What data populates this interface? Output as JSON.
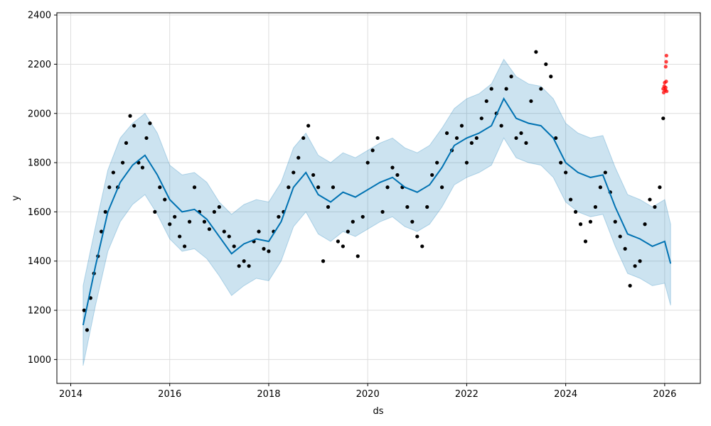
{
  "chart_data": {
    "type": "line",
    "xlabel": "ds",
    "ylabel": "y",
    "x_axis_kind": "date (decimal year)",
    "xlim": [
      2013.72,
      2026.72
    ],
    "ylim": [
      903,
      2409
    ],
    "x_ticks": [
      2014,
      2016,
      2018,
      2020,
      2022,
      2024,
      2026
    ],
    "x_tick_labels": [
      "2014",
      "2016",
      "2018",
      "2020",
      "2022",
      "2024",
      "2026"
    ],
    "y_ticks": [
      1000,
      1200,
      1400,
      1600,
      1800,
      2000,
      2200,
      2400
    ],
    "y_tick_labels": [
      "1000",
      "1200",
      "1400",
      "1600",
      "1800",
      "2000",
      "2200",
      "2400"
    ],
    "grid": true,
    "colors": {
      "forecast_line": "#0072B2",
      "interval_fill": "#0072B2",
      "observed_points": "#000000",
      "new_points": "#FF0000",
      "grid": "#dddddd"
    },
    "series": [
      {
        "kind": "forecast",
        "x": [
          2014.25,
          2014.5,
          2014.75,
          2015.0,
          2015.25,
          2015.5,
          2015.75,
          2016.0,
          2016.25,
          2016.5,
          2016.75,
          2017.0,
          2017.25,
          2017.5,
          2017.75,
          2018.0,
          2018.25,
          2018.5,
          2018.75,
          2019.0,
          2019.25,
          2019.5,
          2019.75,
          2020.0,
          2020.25,
          2020.5,
          2020.75,
          2021.0,
          2021.25,
          2021.5,
          2021.75,
          2022.0,
          2022.25,
          2022.5,
          2022.75,
          2023.0,
          2023.25,
          2023.5,
          2023.75,
          2024.0,
          2024.25,
          2024.5,
          2024.75,
          2025.0,
          2025.25,
          2025.5,
          2025.75,
          2026.0,
          2026.12
        ],
        "y": [
          1140,
          1380,
          1600,
          1720,
          1790,
          1830,
          1750,
          1650,
          1600,
          1610,
          1570,
          1500,
          1430,
          1470,
          1490,
          1480,
          1560,
          1700,
          1760,
          1670,
          1640,
          1680,
          1660,
          1690,
          1720,
          1740,
          1700,
          1680,
          1710,
          1780,
          1870,
          1900,
          1920,
          1950,
          2060,
          1980,
          1960,
          1950,
          1900,
          1800,
          1760,
          1740,
          1750,
          1620,
          1510,
          1490,
          1460,
          1480,
          1390
        ]
      },
      {
        "kind": "interval_upper",
        "x": [
          2014.25,
          2014.5,
          2014.75,
          2015.0,
          2015.25,
          2015.5,
          2015.75,
          2016.0,
          2016.25,
          2016.5,
          2016.75,
          2017.0,
          2017.25,
          2017.5,
          2017.75,
          2018.0,
          2018.25,
          2018.5,
          2018.75,
          2019.0,
          2019.25,
          2019.5,
          2019.75,
          2020.0,
          2020.25,
          2020.5,
          2020.75,
          2021.0,
          2021.25,
          2021.5,
          2021.75,
          2022.0,
          2022.25,
          2022.5,
          2022.75,
          2023.0,
          2023.25,
          2023.5,
          2023.75,
          2024.0,
          2024.25,
          2024.5,
          2024.75,
          2025.0,
          2025.25,
          2025.5,
          2025.75,
          2026.0,
          2026.12
        ],
        "y": [
          1300,
          1540,
          1770,
          1900,
          1960,
          2000,
          1920,
          1790,
          1750,
          1760,
          1720,
          1640,
          1590,
          1630,
          1650,
          1640,
          1720,
          1860,
          1920,
          1830,
          1800,
          1840,
          1820,
          1850,
          1880,
          1900,
          1860,
          1840,
          1870,
          1940,
          2020,
          2060,
          2080,
          2120,
          2220,
          2150,
          2120,
          2110,
          2060,
          1960,
          1920,
          1900,
          1910,
          1780,
          1670,
          1650,
          1620,
          1650,
          1550
        ]
      },
      {
        "kind": "interval_lower",
        "x": [
          2014.25,
          2014.5,
          2014.75,
          2015.0,
          2015.25,
          2015.5,
          2015.75,
          2016.0,
          2016.25,
          2016.5,
          2016.75,
          2017.0,
          2017.25,
          2017.5,
          2017.75,
          2018.0,
          2018.25,
          2018.5,
          2018.75,
          2019.0,
          2019.25,
          2019.5,
          2019.75,
          2020.0,
          2020.25,
          2020.5,
          2020.75,
          2021.0,
          2021.25,
          2021.5,
          2021.75,
          2022.0,
          2022.25,
          2022.5,
          2022.75,
          2023.0,
          2023.25,
          2023.5,
          2023.75,
          2024.0,
          2024.25,
          2024.5,
          2024.75,
          2025.0,
          2025.25,
          2025.5,
          2025.75,
          2026.0,
          2026.12
        ],
        "y": [
          975,
          1220,
          1440,
          1560,
          1630,
          1670,
          1590,
          1490,
          1440,
          1450,
          1410,
          1340,
          1260,
          1300,
          1330,
          1320,
          1400,
          1540,
          1600,
          1510,
          1480,
          1520,
          1500,
          1530,
          1560,
          1580,
          1540,
          1520,
          1550,
          1620,
          1710,
          1740,
          1760,
          1790,
          1900,
          1820,
          1800,
          1790,
          1740,
          1640,
          1600,
          1580,
          1590,
          1460,
          1350,
          1330,
          1300,
          1310,
          1220
        ]
      },
      {
        "kind": "observed",
        "x": [
          2014.27,
          2014.33,
          2014.4,
          2014.47,
          2014.55,
          2014.62,
          2014.7,
          2014.78,
          2014.86,
          2014.95,
          2015.05,
          2015.12,
          2015.2,
          2015.28,
          2015.37,
          2015.45,
          2015.53,
          2015.6,
          2015.7,
          2015.8,
          2015.9,
          2016.0,
          2016.1,
          2016.2,
          2016.3,
          2016.4,
          2016.5,
          2016.6,
          2016.7,
          2016.8,
          2016.9,
          2017.0,
          2017.1,
          2017.2,
          2017.3,
          2017.4,
          2017.5,
          2017.6,
          2017.7,
          2017.8,
          2017.9,
          2018.0,
          2018.1,
          2018.2,
          2018.3,
          2018.4,
          2018.5,
          2018.6,
          2018.7,
          2018.8,
          2018.9,
          2019.0,
          2019.1,
          2019.2,
          2019.3,
          2019.4,
          2019.5,
          2019.6,
          2019.7,
          2019.8,
          2019.9,
          2020.0,
          2020.1,
          2020.2,
          2020.3,
          2020.4,
          2020.5,
          2020.6,
          2020.7,
          2020.8,
          2020.9,
          2021.0,
          2021.1,
          2021.2,
          2021.3,
          2021.4,
          2021.5,
          2021.6,
          2021.7,
          2021.8,
          2021.9,
          2022.0,
          2022.1,
          2022.2,
          2022.3,
          2022.4,
          2022.5,
          2022.6,
          2022.7,
          2022.8,
          2022.9,
          2023.0,
          2023.1,
          2023.2,
          2023.3,
          2023.4,
          2023.5,
          2023.6,
          2023.7,
          2023.8,
          2023.9,
          2024.0,
          2024.1,
          2024.2,
          2024.3,
          2024.4,
          2024.5,
          2024.6,
          2024.7,
          2024.8,
          2024.9,
          2025.0,
          2025.1,
          2025.2,
          2025.3,
          2025.4,
          2025.5,
          2025.6,
          2025.7,
          2025.8,
          2025.9,
          2025.97
        ],
        "y": [
          1200,
          1120,
          1250,
          1350,
          1420,
          1520,
          1600,
          1700,
          1760,
          1700,
          1800,
          1880,
          1990,
          1950,
          1800,
          1780,
          1900,
          1960,
          1600,
          1700,
          1650,
          1550,
          1580,
          1500,
          1460,
          1560,
          1700,
          1600,
          1560,
          1530,
          1600,
          1620,
          1520,
          1500,
          1460,
          1380,
          1400,
          1380,
          1480,
          1520,
          1450,
          1440,
          1520,
          1580,
          1600,
          1700,
          1760,
          1820,
          1900,
          1950,
          1750,
          1700,
          1400,
          1620,
          1700,
          1480,
          1460,
          1520,
          1560,
          1420,
          1580,
          1800,
          1850,
          1900,
          1600,
          1700,
          1780,
          1750,
          1700,
          1620,
          1560,
          1500,
          1460,
          1620,
          1750,
          1800,
          1700,
          1920,
          1850,
          1900,
          1950,
          1800,
          1880,
          1900,
          1980,
          2050,
          2100,
          2000,
          1950,
          2100,
          2150,
          1900,
          1920,
          1880,
          2050,
          2250,
          2100,
          2200,
          2150,
          1900,
          1800,
          1760,
          1650,
          1600,
          1550,
          1480,
          1560,
          1620,
          1700,
          1760,
          1680,
          1560,
          1500,
          1450,
          1300,
          1380,
          1400,
          1550,
          1650,
          1620,
          1700,
          1980
        ]
      },
      {
        "kind": "new_observed",
        "x": [
          2025.97,
          2025.98,
          2025.99,
          2026.0,
          2026.01,
          2026.02,
          2026.03,
          2026.04,
          2026.02,
          2026.03,
          2026.035
        ],
        "y": [
          2100,
          2085,
          2110,
          2125,
          2095,
          2105,
          2130,
          2090,
          2190,
          2210,
          2235
        ]
      }
    ]
  }
}
